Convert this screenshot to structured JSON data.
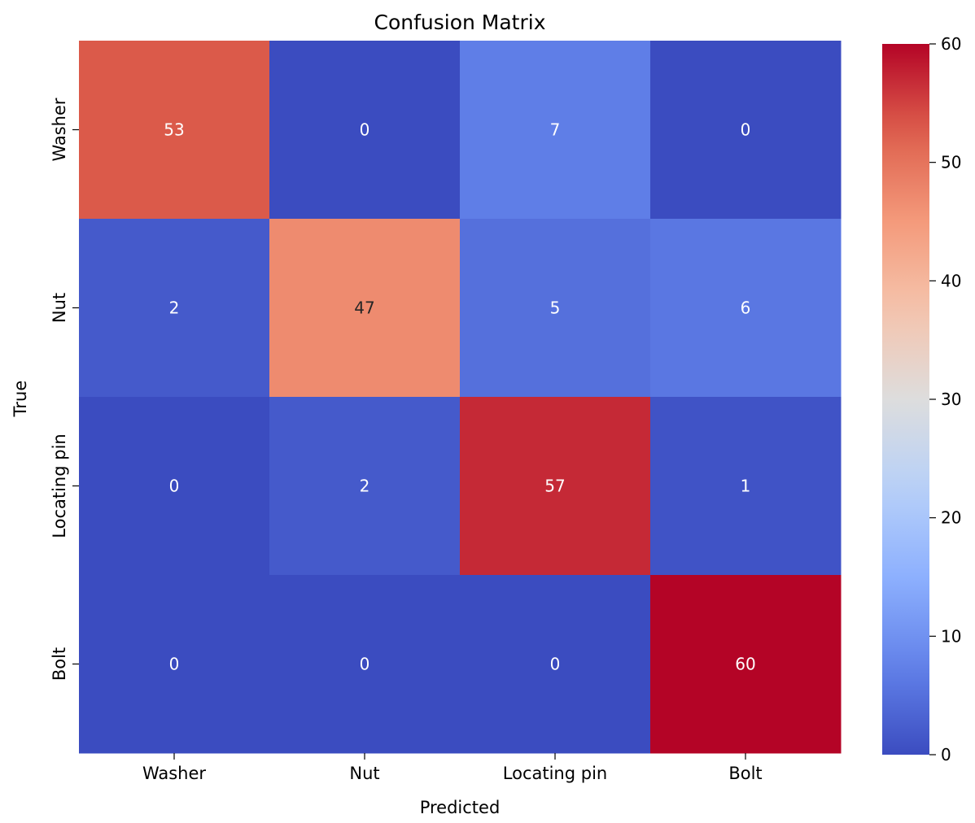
{
  "chart_data": {
    "type": "heatmap",
    "title": "Confusion Matrix",
    "xlabel": "Predicted",
    "ylabel": "True",
    "x_categories": [
      "Washer",
      "Nut",
      "Locating pin",
      "Bolt"
    ],
    "y_categories": [
      "Washer",
      "Nut",
      "Locating pin",
      "Bolt"
    ],
    "values": [
      [
        53,
        0,
        7,
        0
      ],
      [
        2,
        47,
        5,
        6
      ],
      [
        0,
        2,
        57,
        1
      ],
      [
        0,
        0,
        0,
        60
      ]
    ],
    "colormap": "coolwarm",
    "color_range": [
      0,
      60
    ],
    "colorbar_ticks": [
      0,
      10,
      20,
      30,
      40,
      50,
      60
    ],
    "colorbar_tick_labels": [
      "0",
      "10",
      "20",
      "30",
      "40",
      "50",
      "60"
    ],
    "annotations_visible": true,
    "grid": false
  }
}
